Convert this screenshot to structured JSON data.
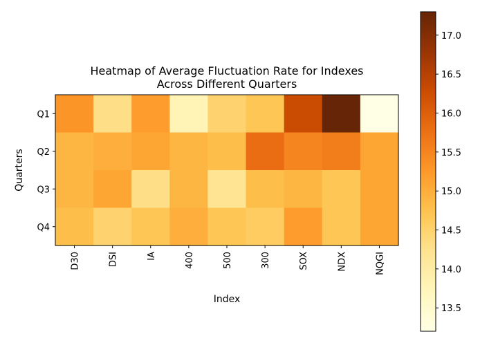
{
  "chart_data": {
    "type": "heatmap",
    "title": "Heatmap of Average Fluctuation Rate for Indexes\nAcross Different Quarters",
    "xlabel": "Index",
    "ylabel": "Quarters",
    "x_categories": [
      "D30",
      "DSI",
      "IA",
      "400",
      "500",
      "300",
      "SOX",
      "NDX",
      "NQGI"
    ],
    "y_categories": [
      "Q1",
      "Q2",
      "Q3",
      "Q4"
    ],
    "values": [
      [
        15.3,
        14.3,
        15.2,
        13.8,
        14.5,
        14.7,
        16.3,
        17.3,
        13.2
      ],
      [
        14.9,
        15.0,
        15.1,
        14.9,
        14.8,
        15.8,
        15.5,
        15.6,
        15.1
      ],
      [
        14.9,
        15.1,
        14.3,
        14.9,
        14.2,
        14.8,
        14.9,
        14.7,
        15.1
      ],
      [
        14.8,
        14.5,
        14.7,
        15.0,
        14.7,
        14.6,
        15.2,
        14.7,
        15.1
      ]
    ],
    "colormap": "YlOrBr",
    "vmin": 13.2,
    "vmax": 17.3,
    "colorbar_ticks": [
      "13.5",
      "14.0",
      "14.5",
      "15.0",
      "15.5",
      "16.0",
      "16.5",
      "17.0"
    ],
    "colorbar_tick_values": [
      13.5,
      14.0,
      14.5,
      15.0,
      15.5,
      16.0,
      16.5,
      17.0
    ],
    "grid": false
  }
}
